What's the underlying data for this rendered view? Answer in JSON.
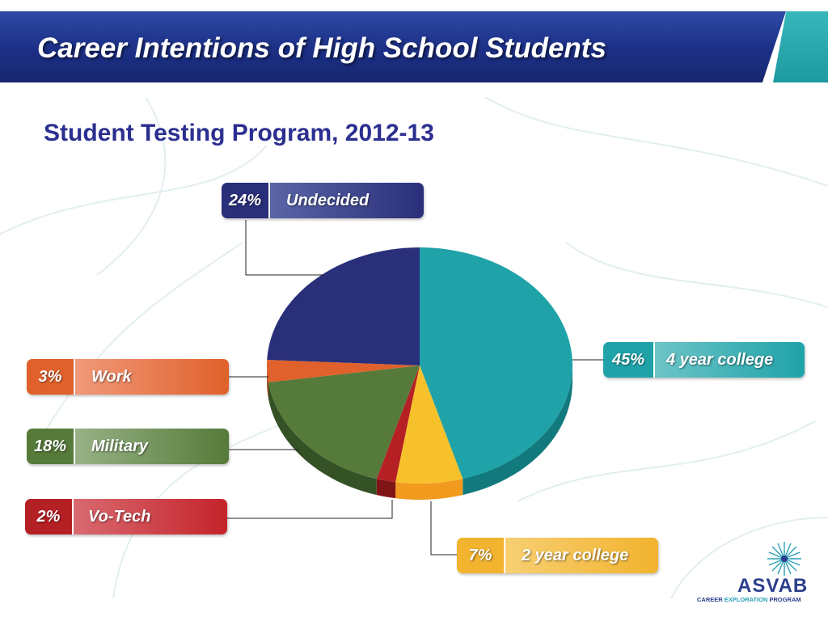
{
  "header": {
    "title": "Career Intentions of High School Students"
  },
  "subtitle": "Student Testing Program, 2012-13",
  "chart_data": {
    "type": "pie",
    "title": "",
    "slices": [
      {
        "label": "4 year college",
        "value": 45,
        "pct_label": "45%",
        "color": "#1fa3a8",
        "side_color": "#127a7d"
      },
      {
        "label": "2 year college",
        "value": 7,
        "pct_label": "7%",
        "color": "#f7c12c",
        "side_color": "#f29a1d"
      },
      {
        "label": "Vo-Tech",
        "value": 2,
        "pct_label": "2%",
        "color": "#b52024",
        "side_color": "#7f1517"
      },
      {
        "label": "Military",
        "value": 18,
        "pct_label": "18%",
        "color": "#567a3a",
        "side_color": "#355126"
      },
      {
        "label": "Work",
        "value": 3,
        "pct_label": "3%",
        "color": "#e0612b",
        "side_color": "#a3441c"
      },
      {
        "label": "Undecided",
        "value": 24,
        "pct_label": "24%",
        "color": "#2a2f7a",
        "side_color": "#1b1f55"
      }
    ]
  },
  "logo": {
    "word": "ASVAB",
    "sub_part1": "CAREER ",
    "sub_part2": "EXPLORATION ",
    "sub_part3": "PROGRAM"
  }
}
